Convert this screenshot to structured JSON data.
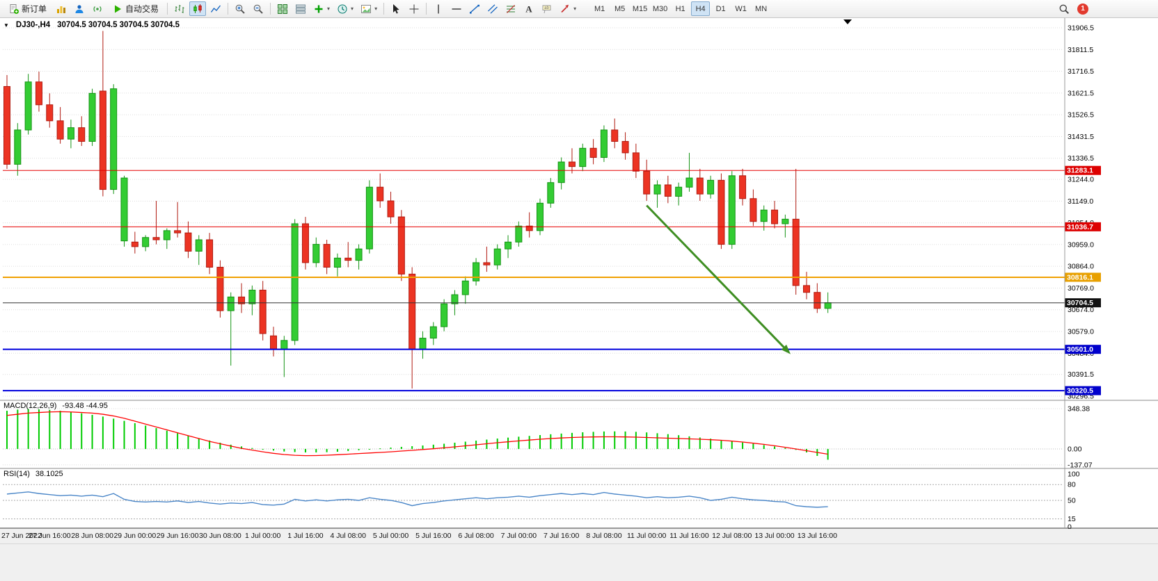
{
  "toolbar": {
    "new_order": "新订单",
    "auto_trading": "自动交易",
    "timeframes": [
      "M1",
      "M5",
      "M15",
      "M30",
      "H1",
      "H4",
      "D1",
      "W1",
      "MN"
    ],
    "active_timeframe": "H4",
    "notification_badge": "1"
  },
  "icons": {
    "dropdown": "▾"
  },
  "chart": {
    "title": "DJ30-,H4",
    "ohlc": "30704.5 30704.5 30704.5 30704.5",
    "macd_label": "MACD(12,26,9)",
    "macd_values": "-93.48 -44.95",
    "rsi_label": "RSI(14)",
    "rsi_value": "38.1025"
  },
  "chart_data": {
    "type": "candlestick",
    "symbol": "DJ30-",
    "timeframe": "H4",
    "price_axis_ticks": [
      31906.5,
      31811.5,
      31716.5,
      31621.5,
      31526.5,
      31431.5,
      31336.5,
      31244.0,
      31149.0,
      31054.0,
      30959.0,
      30864.0,
      30769.0,
      30674.0,
      30579.0,
      30484.0,
      30391.5,
      30296.5
    ],
    "time_labels": [
      [
        "27 Jun 2022",
        0
      ],
      [
        "27 Jun 16:00",
        4
      ],
      [
        "28 Jun 08:00",
        8
      ],
      [
        "29 Jun 00:00",
        12
      ],
      [
        "29 Jun 16:00",
        16
      ],
      [
        "30 Jun 08:00",
        20
      ],
      [
        "1 Jul 00:00",
        24
      ],
      [
        "1 Jul 16:00",
        28
      ],
      [
        "4 Jul 08:00",
        32
      ],
      [
        "5 Jul 00:00",
        36
      ],
      [
        "5 Jul 16:00",
        40
      ],
      [
        "6 Jul 08:00",
        44
      ],
      [
        "7 Jul 00:00",
        48
      ],
      [
        "7 Jul 16:00",
        52
      ],
      [
        "8 Jul 08:00",
        56
      ],
      [
        "11 Jul 00:00",
        60
      ],
      [
        "11 Jul 16:00",
        64
      ],
      [
        "12 Jul 08:00",
        68
      ],
      [
        "13 Jul 00:00",
        72
      ],
      [
        "13 Jul 16:00",
        76
      ]
    ],
    "candles": [
      [
        31650,
        31700,
        31290,
        31310
      ],
      [
        31310,
        31490,
        31260,
        31460
      ],
      [
        31460,
        31705,
        31440,
        31670
      ],
      [
        31670,
        31715,
        31540,
        31570
      ],
      [
        31570,
        31620,
        31470,
        31500
      ],
      [
        31500,
        31560,
        31400,
        31420
      ],
      [
        31420,
        31505,
        31380,
        31470
      ],
      [
        31470,
        31520,
        31390,
        31410
      ],
      [
        31410,
        31640,
        31390,
        31620
      ],
      [
        31630,
        31893,
        31170,
        31200
      ],
      [
        31200,
        31660,
        31180,
        31640
      ],
      [
        30975,
        31260,
        30950,
        31250
      ],
      [
        30970,
        31015,
        30920,
        30950
      ],
      [
        30950,
        31000,
        30930,
        30990
      ],
      [
        30990,
        31150,
        30960,
        30980
      ],
      [
        30980,
        31030,
        30940,
        31020
      ],
      [
        31020,
        31145,
        30990,
        31010
      ],
      [
        31010,
        31060,
        30900,
        30930
      ],
      [
        30930,
        31000,
        30870,
        30980
      ],
      [
        30980,
        31010,
        30830,
        30860
      ],
      [
        30860,
        30890,
        30640,
        30670
      ],
      [
        30670,
        30750,
        30430,
        30730
      ],
      [
        30730,
        30790,
        30660,
        30700
      ],
      [
        30700,
        30780,
        30650,
        30760
      ],
      [
        30760,
        30800,
        30540,
        30570
      ],
      [
        30560,
        30600,
        30470,
        30500
      ],
      [
        30500,
        30560,
        30380,
        30540
      ],
      [
        30540,
        31070,
        30520,
        31050
      ],
      [
        31050,
        31080,
        30850,
        30880
      ],
      [
        30880,
        30990,
        30860,
        30960
      ],
      [
        30960,
        30980,
        30830,
        30860
      ],
      [
        30860,
        30920,
        30820,
        30900
      ],
      [
        30900,
        30970,
        30860,
        30890
      ],
      [
        30890,
        30960,
        30850,
        30940
      ],
      [
        30940,
        31240,
        30920,
        31210
      ],
      [
        31210,
        31270,
        31120,
        31150
      ],
      [
        31150,
        31190,
        31050,
        31080
      ],
      [
        31080,
        31110,
        30800,
        30830
      ],
      [
        30830,
        30860,
        30330,
        30500
      ],
      [
        30500,
        30580,
        30460,
        30550
      ],
      [
        30550,
        30620,
        30520,
        30600
      ],
      [
        30600,
        30720,
        30580,
        30700
      ],
      [
        30700,
        30760,
        30650,
        30740
      ],
      [
        30740,
        30820,
        30700,
        30800
      ],
      [
        30800,
        30900,
        30780,
        30880
      ],
      [
        30880,
        30950,
        30840,
        30870
      ],
      [
        30870,
        30960,
        30850,
        30940
      ],
      [
        30940,
        31000,
        30900,
        30970
      ],
      [
        30970,
        31060,
        30950,
        31040
      ],
      [
        31040,
        31100,
        30990,
        31020
      ],
      [
        31020,
        31160,
        31000,
        31140
      ],
      [
        31140,
        31250,
        31120,
        31230
      ],
      [
        31230,
        31340,
        31200,
        31320
      ],
      [
        31320,
        31380,
        31270,
        31300
      ],
      [
        31300,
        31400,
        31280,
        31380
      ],
      [
        31380,
        31420,
        31310,
        31340
      ],
      [
        31340,
        31480,
        31320,
        31460
      ],
      [
        31460,
        31510,
        31380,
        31410
      ],
      [
        31410,
        31450,
        31330,
        31360
      ],
      [
        31360,
        31400,
        31250,
        31280
      ],
      [
        31280,
        31330,
        31150,
        31180
      ],
      [
        31180,
        31240,
        31120,
        31220
      ],
      [
        31220,
        31260,
        31140,
        31170
      ],
      [
        31170,
        31230,
        31130,
        31210
      ],
      [
        31210,
        31360,
        31190,
        31250
      ],
      [
        31250,
        31290,
        31150,
        31180
      ],
      [
        31180,
        31260,
        31160,
        31240
      ],
      [
        31240,
        31270,
        30940,
        30960
      ],
      [
        30960,
        31280,
        30940,
        31260
      ],
      [
        31260,
        31290,
        31130,
        31160
      ],
      [
        31160,
        31200,
        31040,
        31060
      ],
      [
        31060,
        31130,
        31020,
        31110
      ],
      [
        31110,
        31150,
        31030,
        31050
      ],
      [
        31050,
        31090,
        30990,
        31070
      ],
      [
        31070,
        31290,
        30740,
        30780
      ],
      [
        30780,
        30840,
        30720,
        30750
      ],
      [
        30750,
        30790,
        30660,
        30680
      ],
      [
        30680,
        30750,
        30660,
        30705
      ]
    ],
    "hlines": [
      {
        "price": 31283.1,
        "color": "#e60000",
        "width": 1,
        "badge_bg": "#dd0000"
      },
      {
        "price": 31036.7,
        "color": "#e60000",
        "width": 1,
        "badge_bg": "#dd0000"
      },
      {
        "price": 30816.1,
        "color": "#f0a000",
        "width": 2,
        "badge_bg": "#e8a000"
      },
      {
        "price": 30704.5,
        "color": "#333333",
        "width": 1,
        "badge_bg": "#111111"
      },
      {
        "price": 30501.0,
        "color": "#0000dd",
        "width": 2,
        "badge_bg": "#0000cc"
      },
      {
        "price": 30320.5,
        "color": "#0000dd",
        "width": 2,
        "badge_bg": "#0000cc"
      }
    ],
    "current_price": 30704.5,
    "arrow": {
      "from_bar": 60,
      "from_price": 31130,
      "to_bar": 73.5,
      "to_price": 30480,
      "color": "#3e8e22"
    },
    "macd": {
      "axis_ticks": [
        348.38,
        0.0,
        -137.07
      ],
      "histogram": [
        330,
        340,
        345,
        342,
        338,
        330,
        320,
        308,
        295,
        280,
        262,
        243,
        223,
        202,
        180,
        158,
        136,
        114,
        93,
        73,
        54,
        37,
        22,
        8,
        -4,
        -14,
        -22,
        -27,
        -30,
        -30,
        -28,
        -24,
        -18,
        -11,
        -3,
        5,
        12,
        18,
        24,
        30,
        37,
        45,
        54,
        63,
        72,
        81,
        90,
        98,
        106,
        113,
        120,
        127,
        133,
        139,
        144,
        148,
        151,
        152,
        151,
        148,
        143,
        136,
        128,
        119,
        109,
        99,
        89,
        78,
        67,
        56,
        45,
        34,
        22,
        8,
        -8,
        -30,
        -60,
        -93
      ],
      "signal": [
        290,
        300,
        310,
        315,
        320,
        322,
        320,
        315,
        310,
        300,
        285,
        265,
        240,
        215,
        190,
        165,
        140,
        115,
        90,
        65,
        45,
        25,
        5,
        -10,
        -25,
        -38,
        -48,
        -55,
        -58,
        -57,
        -54,
        -50,
        -45,
        -40,
        -35,
        -30,
        -25,
        -18,
        -12,
        -5,
        2,
        10,
        18,
        27,
        36,
        45,
        54,
        62,
        70,
        77,
        84,
        90,
        95,
        99,
        102,
        104,
        105,
        105,
        104,
        102,
        99,
        96,
        93,
        90,
        87,
        84,
        80,
        75,
        68,
        60,
        50,
        40,
        28,
        14,
        0,
        -15,
        -30,
        -45
      ]
    },
    "rsi": {
      "axis_ticks": [
        100,
        80,
        50,
        15,
        0
      ],
      "levels": [
        80,
        50,
        15
      ],
      "values": [
        62,
        64,
        66,
        63,
        61,
        59,
        60,
        58,
        60,
        57,
        63,
        52,
        48,
        47,
        48,
        47,
        49,
        46,
        48,
        45,
        43,
        45,
        44,
        46,
        42,
        41,
        43,
        52,
        49,
        51,
        49,
        51,
        52,
        50,
        55,
        52,
        50,
        46,
        40,
        44,
        46,
        49,
        51,
        53,
        55,
        53,
        55,
        56,
        58,
        56,
        59,
        61,
        63,
        61,
        63,
        61,
        65,
        62,
        60,
        58,
        55,
        57,
        55,
        56,
        58,
        55,
        50,
        52,
        56,
        53,
        51,
        50,
        48,
        47,
        40,
        38,
        37,
        38.1
      ]
    }
  }
}
